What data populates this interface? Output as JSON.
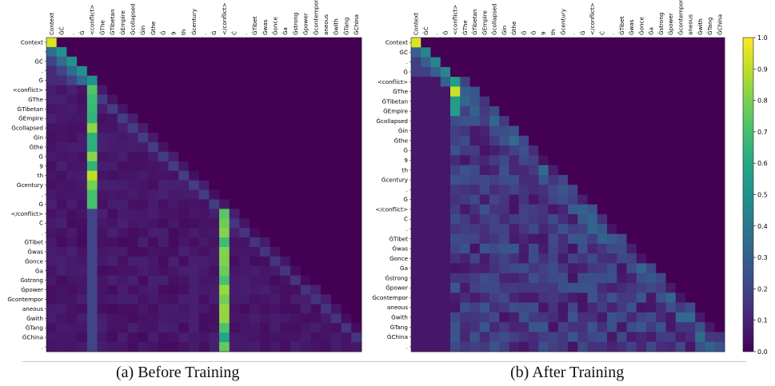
{
  "captions": {
    "a": "(a) Before Training",
    "b": "(b) After Training"
  },
  "colorbar": {
    "colormap": "viridis",
    "min": 0.0,
    "max": 1.0,
    "ticks": [
      "0.0",
      "0.1",
      "0.2",
      "0.3",
      "0.4",
      "0.5",
      "0.6",
      "0.7",
      "0.8",
      "0.9",
      "1.0"
    ]
  },
  "chart_data": [
    {
      "type": "heatmap",
      "title": "(a) Before Training",
      "x_tokens": [
        "Context",
        "ĠĊ",
        ".",
        "Ġ",
        "<conflict>",
        "ĠThe",
        "ĠTibetan",
        "ĠEmpire",
        "Ġcollapsed",
        "Ġin",
        "Ġthe",
        "Ġ",
        "9",
        "th",
        "Ġcentury",
        ".",
        "Ġ",
        "</conflict>",
        "Ċ",
        ".",
        "ĠTibet",
        "Ġwas",
        "Ġonce",
        "Ġa",
        "Ġstrong",
        "Ġpower",
        "Ġcontempor",
        "aneous",
        "Ġwith",
        "ĠTang",
        "ĠChina"
      ],
      "y_tokens": [
        "Context",
        "",
        "ĠĊ",
        ".",
        "Ġ",
        "<conflict>",
        "ĠThe",
        "ĠTibetan",
        "ĠEmpire",
        "Ġcollapsed",
        "Ġin",
        "Ġthe",
        "Ġ",
        "9",
        "th",
        "Ġcentury",
        ".",
        "Ġ",
        "</conflict>",
        "Ċ",
        ".",
        "ĠTibet",
        "Ġwas",
        "Ġonce",
        "Ġa",
        "Ġstrong",
        "Ġpower",
        "Ġcontempor",
        "aneous",
        "Ġwith",
        "ĠTang",
        "ĠChina",
        "."
      ],
      "value_range": [
        0.0,
        1.0
      ],
      "pattern": "lower-triangular causal attention; column <conflict> strongly attended (~0.8-0.95) by rows <conflict> through </conflict>; column </conflict> strongly attended (~0.6-0.9) by all rows after it; first rows attend to Context and the first tokens",
      "peaks": [
        {
          "row": "Context",
          "col": "Context",
          "value": 0.95
        },
        {
          "row": "<conflict>",
          "col": "<conflict>",
          "value": 0.95
        },
        {
          "row": "Ċ",
          "col": "</conflict>",
          "value": 0.88
        }
      ]
    },
    {
      "type": "heatmap",
      "title": "(b) After Training",
      "x_tokens": [
        "Context",
        "ĠĊ",
        ".",
        "Ġ",
        "<conflict>",
        "ĠThe",
        "ĠTibetan",
        "ĠEmpire",
        "Ġcollapsed",
        "Ġin",
        "Ġthe",
        "Ġ",
        "Ġ",
        "9",
        "th",
        "Ġcentury",
        ".",
        "Ġ",
        "</conflict>",
        "Ċ",
        ".",
        "ĠTibet",
        "Ġwas",
        "Ġonce",
        "Ġa",
        "Ġstrong",
        "Ġpower",
        "Ġcontempor",
        "aneous",
        "Ġwith",
        "ĠTang",
        "ĠChina"
      ],
      "y_tokens": [
        "Context",
        "ĠĊ",
        ".",
        "Ġ",
        "<conflict>",
        "ĠThe",
        "ĠTibetan",
        "ĠEmpire",
        "Ġcollapsed",
        "Ġin",
        "Ġthe",
        "Ġ",
        "9",
        "th",
        "Ġcentury",
        ".",
        "Ġ",
        "</conflict>",
        "Ċ",
        ".",
        "ĠTibet",
        "Ġwas",
        "Ġonce",
        "Ġa",
        "Ġstrong",
        "Ġpower",
        "Ġcontempor",
        "aneous",
        "Ġwith",
        "ĠTang",
        "ĠChina",
        "."
      ],
      "value_range": [
        0.0,
        1.0
      ],
      "pattern": "attention spread across conflict-span tokens (~0.15-0.4) with no single dominating column after training",
      "peaks": [
        {
          "row": "Context",
          "col": "Context",
          "value": 0.95
        },
        {
          "row": "ĠThe",
          "col": "<conflict>",
          "value": 0.92
        }
      ]
    }
  ]
}
